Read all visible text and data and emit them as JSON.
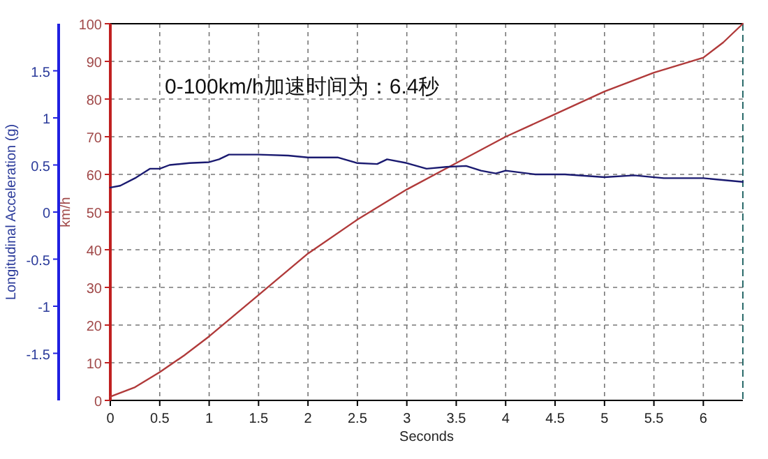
{
  "chart_data": {
    "type": "line",
    "xlabel": "Seconds",
    "ylabel": "km/h",
    "y2label": "Longitudinal Acceleration (g)",
    "annotations": [
      "0-100km/h加速时间为：6.4秒"
    ],
    "xlim": [
      0,
      6.4
    ],
    "xticks": [
      0,
      0.5,
      1,
      1.5,
      2,
      2.5,
      3,
      3.5,
      4,
      4.5,
      5,
      5.5,
      6
    ],
    "ylim": [
      0,
      100
    ],
    "yticks": [
      0,
      10,
      20,
      30,
      40,
      50,
      60,
      70,
      80,
      90,
      100
    ],
    "y2lim": [
      -2,
      2
    ],
    "y2ticks": [
      -1.5,
      -1,
      -0.5,
      0,
      0.5,
      1,
      1.5
    ],
    "grid": true,
    "line_style": "solid",
    "series": [
      {
        "color": "#b03a3a",
        "x": [
          0,
          0.25,
          0.5,
          0.75,
          1,
          1.5,
          2,
          2.5,
          3,
          3.5,
          4,
          4.5,
          5,
          5.5,
          6,
          6.2,
          6.4
        ],
        "values": [
          1,
          3.5,
          7.5,
          12,
          17,
          28,
          39,
          48,
          56,
          63,
          70,
          76,
          82,
          87,
          91,
          95,
          100
        ]
      },
      {
        "color": "#1a1a70",
        "axis": "y2",
        "x": [
          0,
          0.1,
          0.25,
          0.4,
          0.5,
          0.6,
          0.8,
          1.0,
          1.1,
          1.2,
          1.5,
          1.8,
          2.0,
          2.3,
          2.5,
          2.7,
          2.8,
          3.0,
          3.2,
          3.4,
          3.6,
          3.75,
          3.9,
          4.0,
          4.3,
          4.6,
          5.0,
          5.3,
          5.6,
          6.0,
          6.4
        ],
        "values": [
          0.26,
          0.28,
          0.36,
          0.46,
          0.46,
          0.5,
          0.52,
          0.53,
          0.56,
          0.61,
          0.61,
          0.6,
          0.58,
          0.58,
          0.52,
          0.51,
          0.56,
          0.52,
          0.46,
          0.48,
          0.49,
          0.44,
          0.41,
          0.44,
          0.4,
          0.4,
          0.37,
          0.39,
          0.36,
          0.36,
          0.32
        ]
      }
    ]
  }
}
